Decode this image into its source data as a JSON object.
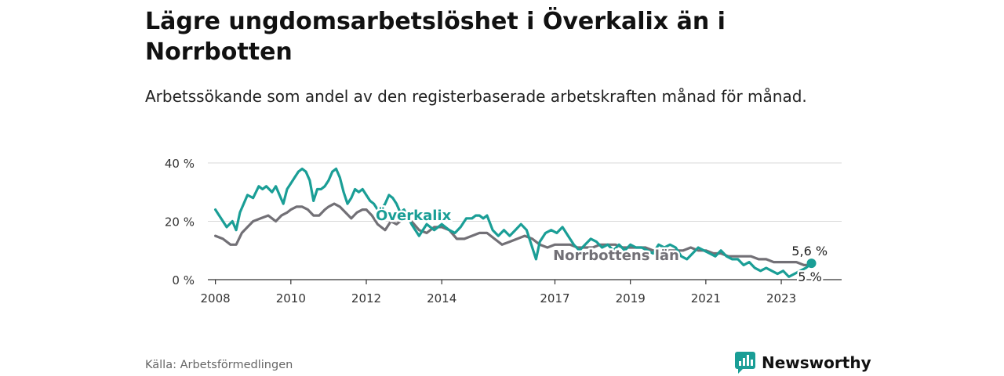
{
  "header": {
    "title": "Lägre ungdomsarbetslöshet i Överkalix än i Norrbotten",
    "subtitle": "Arbetssökande som andel av den registerbaserade arbetskraften månad för månad."
  },
  "footer": {
    "source": "Källa: Arbetsförmedlingen",
    "brand": "Newsworthy"
  },
  "colors": {
    "overkalix": "#1a9e96",
    "norrbotten": "#727076",
    "grid": "#d9d9d9",
    "axis": "#333333",
    "brand": "#1a9e96"
  },
  "chart_data": {
    "type": "line",
    "title": "Lägre ungdomsarbetslöshet i Överkalix än i Norrbotten",
    "xlabel": "",
    "ylabel": "",
    "xlim": [
      2007.8,
      2024.6
    ],
    "ylim": [
      0,
      40
    ],
    "y_ticks": [
      0,
      20,
      40
    ],
    "y_tick_labels": [
      "0 %",
      "20 %",
      "40 %"
    ],
    "x_ticks": [
      2008,
      2010,
      2012,
      2014,
      2017,
      2019,
      2021,
      2023
    ],
    "x_tick_labels": [
      "2008",
      "2010",
      "2012",
      "2014",
      "2017",
      "2019",
      "2021",
      "2023"
    ],
    "grid": true,
    "series": [
      {
        "name": "Överkalix",
        "label": "Överkalix",
        "color": "#1a9e96",
        "end_label": "5,6 %",
        "x": [
          2008.0,
          2008.15,
          2008.3,
          2008.45,
          2008.55,
          2008.65,
          2008.75,
          2008.85,
          2009.0,
          2009.15,
          2009.25,
          2009.35,
          2009.5,
          2009.6,
          2009.7,
          2009.8,
          2009.9,
          2010.0,
          2010.1,
          2010.2,
          2010.3,
          2010.4,
          2010.5,
          2010.6,
          2010.7,
          2010.8,
          2010.9,
          2011.0,
          2011.1,
          2011.2,
          2011.3,
          2011.4,
          2011.5,
          2011.6,
          2011.7,
          2011.8,
          2011.9,
          2012.0,
          2012.1,
          2012.2,
          2012.35,
          2012.5,
          2012.6,
          2012.7,
          2012.8,
          2012.9,
          2013.0,
          2013.2,
          2013.4,
          2013.6,
          2013.8,
          2014.0,
          2014.2,
          2014.35,
          2014.5,
          2014.65,
          2014.8,
          2014.9,
          2015.0,
          2015.1,
          2015.2,
          2015.35,
          2015.5,
          2015.65,
          2015.8,
          2015.95,
          2016.1,
          2016.25,
          2016.4,
          2016.5,
          2016.6,
          2016.75,
          2016.9,
          2017.05,
          2017.2,
          2017.35,
          2017.5,
          2017.65,
          2017.8,
          2017.95,
          2018.1,
          2018.25,
          2018.4,
          2018.55,
          2018.7,
          2018.85,
          2019.0,
          2019.15,
          2019.3,
          2019.45,
          2019.6,
          2019.75,
          2019.9,
          2020.05,
          2020.2,
          2020.35,
          2020.5,
          2020.65,
          2020.8,
          2020.95,
          2021.1,
          2021.25,
          2021.4,
          2021.55,
          2021.7,
          2021.85,
          2022.0,
          2022.15,
          2022.3,
          2022.45,
          2022.6,
          2022.75,
          2022.9,
          2023.05,
          2023.2,
          2023.35,
          2023.5,
          2023.65,
          2023.8
        ],
        "values": [
          24,
          21,
          18,
          20,
          17,
          23,
          26,
          29,
          28,
          32,
          31,
          32,
          30,
          32,
          29,
          26,
          31,
          33,
          35,
          37,
          38,
          37,
          34,
          27,
          31,
          31,
          32,
          34,
          37,
          38,
          35,
          30,
          26,
          28,
          31,
          30,
          31,
          29,
          27,
          26,
          23,
          26,
          29,
          28,
          26,
          23,
          24,
          19,
          15,
          19,
          17,
          19,
          17,
          16,
          18,
          21,
          21,
          22,
          22,
          21,
          22,
          17,
          15,
          17,
          15,
          17,
          19,
          17,
          11,
          7,
          13,
          16,
          17,
          16,
          18,
          15,
          12,
          10,
          12,
          14,
          13,
          11,
          12,
          10,
          12,
          10,
          12,
          11,
          11,
          10,
          9,
          12,
          11,
          12,
          11,
          8,
          7,
          9,
          11,
          10,
          9,
          8,
          10,
          8,
          7,
          7,
          5,
          6,
          4,
          3,
          4,
          3,
          2,
          3,
          1,
          2,
          3,
          4,
          5.6
        ]
      },
      {
        "name": "Norrbottens län",
        "label": "Norrbottens län",
        "color": "#727076",
        "end_label": "5 %",
        "x": [
          2008.0,
          2008.2,
          2008.4,
          2008.55,
          2008.7,
          2008.85,
          2009.0,
          2009.2,
          2009.4,
          2009.5,
          2009.6,
          2009.75,
          2009.9,
          2010.0,
          2010.15,
          2010.3,
          2010.45,
          2010.6,
          2010.75,
          2010.9,
          2011.0,
          2011.15,
          2011.3,
          2011.45,
          2011.6,
          2011.75,
          2011.9,
          2012.0,
          2012.15,
          2012.3,
          2012.5,
          2012.65,
          2012.8,
          2013.0,
          2013.2,
          2013.4,
          2013.6,
          2013.8,
          2014.0,
          2014.2,
          2014.4,
          2014.6,
          2014.8,
          2015.0,
          2015.2,
          2015.4,
          2015.6,
          2015.8,
          2016.0,
          2016.2,
          2016.4,
          2016.6,
          2016.8,
          2017.0,
          2017.2,
          2017.4,
          2017.6,
          2017.8,
          2018.0,
          2018.2,
          2018.4,
          2018.6,
          2018.8,
          2019.0,
          2019.2,
          2019.4,
          2019.6,
          2019.8,
          2020.0,
          2020.2,
          2020.4,
          2020.6,
          2020.8,
          2021.0,
          2021.2,
          2021.4,
          2021.6,
          2021.8,
          2022.0,
          2022.2,
          2022.4,
          2022.6,
          2022.8,
          2023.0,
          2023.2,
          2023.4,
          2023.6,
          2023.8
        ],
        "values": [
          15,
          14,
          12,
          12,
          16,
          18,
          20,
          21,
          22,
          21,
          20,
          22,
          23,
          24,
          25,
          25,
          24,
          22,
          22,
          24,
          25,
          26,
          25,
          23,
          21,
          23,
          24,
          24,
          22,
          19,
          17,
          20,
          19,
          21,
          20,
          17,
          16,
          18,
          18,
          17,
          14,
          14,
          15,
          16,
          16,
          14,
          12,
          13,
          14,
          15,
          14,
          12,
          11,
          12,
          12,
          12,
          11,
          11,
          11,
          12,
          12,
          12,
          11,
          11,
          11,
          11,
          10,
          10,
          10,
          10,
          10,
          11,
          10,
          10,
          9,
          9,
          8,
          8,
          8,
          8,
          7,
          7,
          6,
          6,
          6,
          6,
          5,
          5
        ]
      }
    ]
  }
}
